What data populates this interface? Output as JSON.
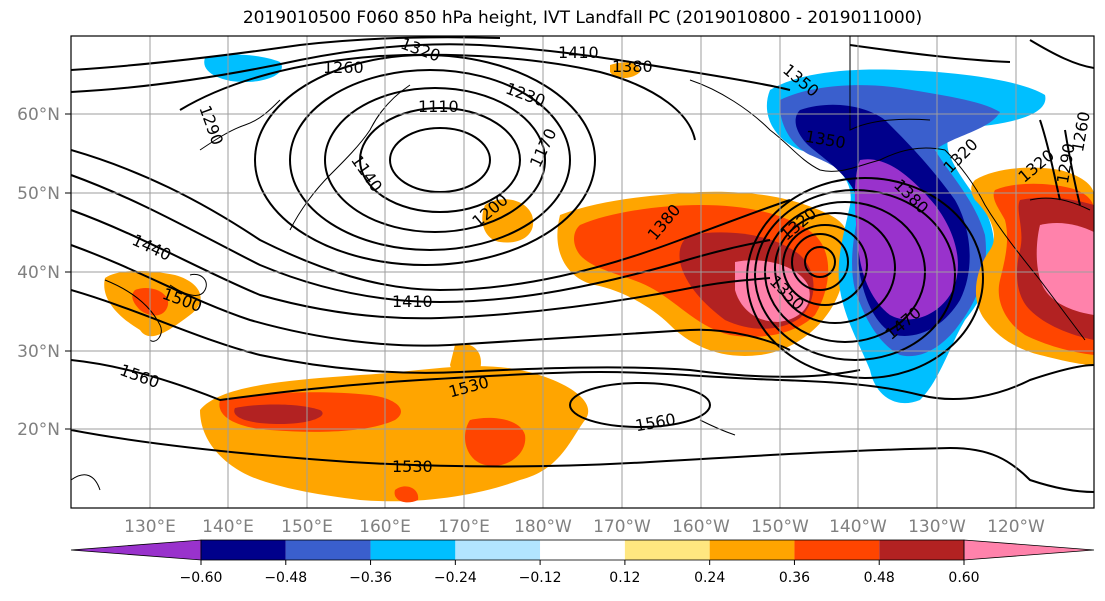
{
  "title": "2019010500 F060 850 hPa height, IVT Landfall PC (2019010800 - 2019011000)",
  "lat_labels": [
    "60°N",
    "50°N",
    "40°N",
    "30°N",
    "20°N"
  ],
  "lon_labels": [
    "130°E",
    "140°E",
    "150°E",
    "160°E",
    "170°E",
    "180°W",
    "170°W",
    "160°W",
    "150°W",
    "140°W",
    "130°W",
    "120°W"
  ],
  "colorbar": {
    "colors": [
      "#9932cc",
      "#00008b",
      "#3a5fcd",
      "#00bfff",
      "#b2e5ff",
      "#ffffff",
      "#ffe780",
      "#ffa500",
      "#ff4500",
      "#b22222",
      "#ff82ab"
    ],
    "labels": [
      "−0.60",
      "−0.48",
      "−0.36",
      "−0.24",
      "−0.12",
      "0.12",
      "0.24",
      "0.36",
      "0.48",
      "0.60"
    ]
  },
  "contour_labels": [
    "1320",
    "1410",
    "1380",
    "1260",
    "1110",
    "1230",
    "1290",
    "1170",
    "1140",
    "1200",
    "1380",
    "1350",
    "1350",
    "1380",
    "1320",
    "1290",
    "1260",
    "1320",
    "1320",
    "1440",
    "1500",
    "1410",
    "1350",
    "1470",
    "1530",
    "1560",
    "1560",
    "1530"
  ]
}
